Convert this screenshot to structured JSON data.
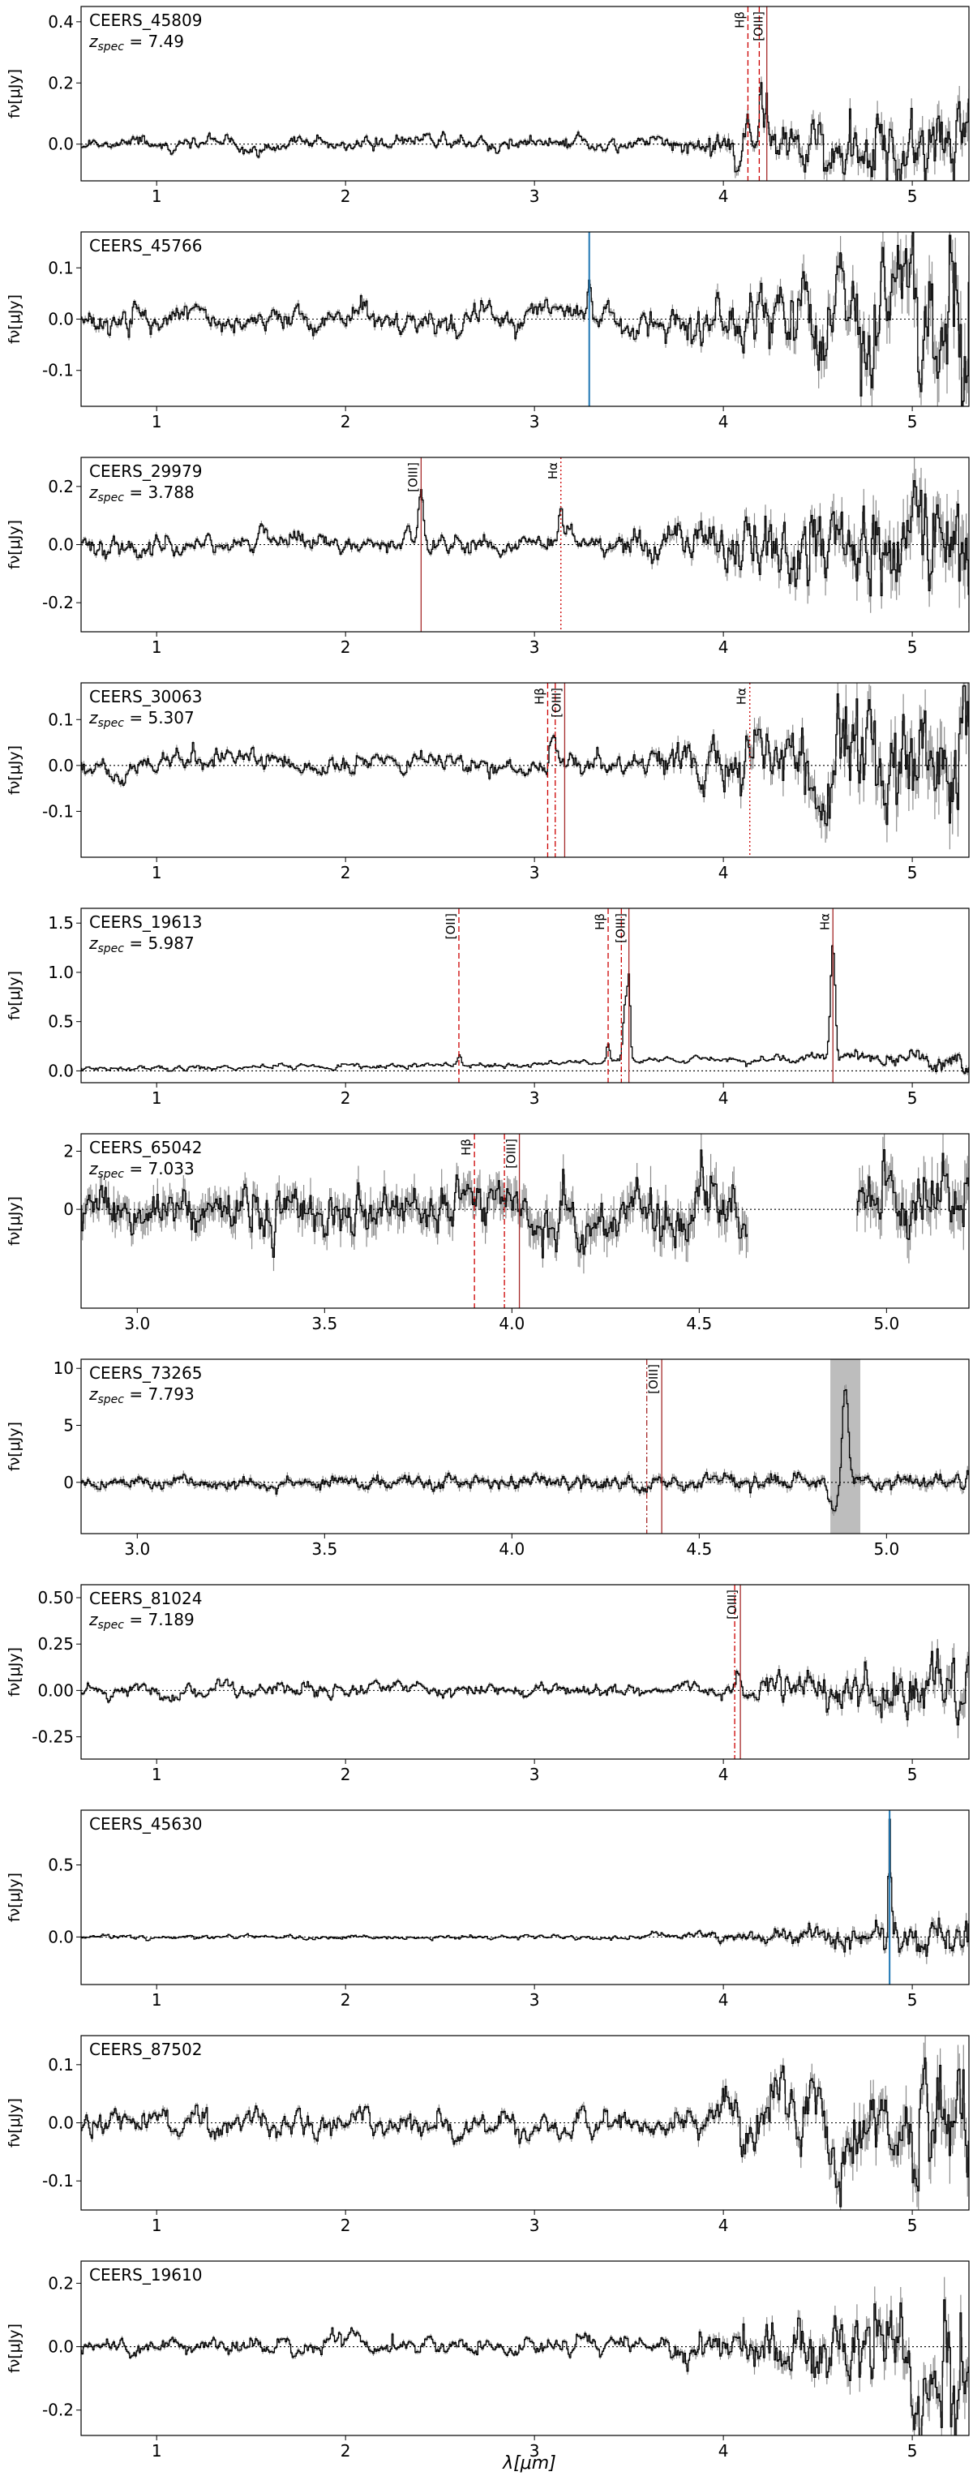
{
  "figure": {
    "xlabel": "λ[μm]"
  },
  "chart_data": [
    {
      "type": "line",
      "id": "CEERS_45809",
      "name": "CEERS_45809",
      "zspec": "7.49",
      "ylabel": "fν[μJy]",
      "xlim": [
        0.6,
        5.3
      ],
      "ylim": [
        -0.12,
        0.45
      ],
      "xticks": [
        1,
        2,
        3,
        4,
        5
      ],
      "xtick_labels": [
        "1",
        "2",
        "3",
        "4",
        "5"
      ],
      "yticks": [
        0.0,
        0.2,
        0.4
      ],
      "ytick_labels": [
        "0.0",
        "0.2",
        "0.4"
      ],
      "noise_start": 0.011,
      "noise_end": 0.1,
      "noise_knee": 3.6,
      "error_scale": 0.5,
      "wiggle": 0.008,
      "seed": 11,
      "features": [
        {
          "x": 4.13,
          "amp": 0.07,
          "w": 0.006
        },
        {
          "x": 4.2,
          "amp": 0.24,
          "w": 0.008
        },
        {
          "x": 4.23,
          "amp": 0.16,
          "w": 0.006
        }
      ],
      "lines": [
        {
          "x": 4.13,
          "label": "Hβ",
          "style": "dashed",
          "color": "#cc0000"
        },
        {
          "x": 4.19,
          "label": "",
          "style": "dashed",
          "color": "#cc0000"
        },
        {
          "x": 4.23,
          "label": "[OIII]",
          "style": "solid",
          "color": "#a52a2a"
        }
      ],
      "markers": [],
      "band": null,
      "gaps": []
    },
    {
      "type": "line",
      "id": "CEERS_45766",
      "name": "CEERS_45766",
      "zspec": "",
      "ylabel": "fν[μJy]",
      "xlim": [
        0.6,
        5.3
      ],
      "ylim": [
        -0.17,
        0.17
      ],
      "xticks": [
        1,
        2,
        3,
        4,
        5
      ],
      "xtick_labels": [
        "1",
        "2",
        "3",
        "4",
        "5"
      ],
      "yticks": [
        -0.1,
        0.0,
        0.1
      ],
      "ytick_labels": [
        "-0.1",
        "0.0",
        "0.1"
      ],
      "noise_start": 0.012,
      "noise_end": 0.1,
      "noise_knee": 3.6,
      "error_scale": 0.5,
      "wiggle": 0.012,
      "seed": 22,
      "features": [
        {
          "x": 3.29,
          "amp": 0.06,
          "w": 0.01
        }
      ],
      "lines": [],
      "markers": [
        {
          "x": 3.29,
          "color": "#1f77b4"
        }
      ],
      "band": null,
      "gaps": []
    },
    {
      "type": "line",
      "id": "CEERS_29979",
      "name": "CEERS_29979",
      "zspec": "3.788",
      "ylabel": "fν[μJy]",
      "xlim": [
        0.6,
        5.3
      ],
      "ylim": [
        -0.3,
        0.3
      ],
      "xticks": [
        1,
        2,
        3,
        4,
        5
      ],
      "xtick_labels": [
        "1",
        "2",
        "3",
        "4",
        "5"
      ],
      "yticks": [
        -0.2,
        0.0,
        0.2
      ],
      "ytick_labels": [
        "-0.2",
        "0.0",
        "0.2"
      ],
      "noise_start": 0.015,
      "noise_end": 0.15,
      "noise_knee": 3.3,
      "error_scale": 0.55,
      "wiggle": 0.02,
      "seed": 33,
      "features": [
        {
          "x": 2.4,
          "amp": 0.2,
          "w": 0.012
        },
        {
          "x": 3.14,
          "amp": 0.11,
          "w": 0.012
        }
      ],
      "lines": [
        {
          "x": 2.4,
          "label": "[OIII]",
          "style": "solid",
          "color": "#a52a2a"
        },
        {
          "x": 3.14,
          "label": "Hα",
          "style": "dotted",
          "color": "#cc0000"
        }
      ],
      "markers": [],
      "band": null,
      "gaps": []
    },
    {
      "type": "line",
      "id": "CEERS_30063",
      "name": "CEERS_30063",
      "zspec": "5.307",
      "ylabel": "fν[μJy]",
      "xlim": [
        0.6,
        5.3
      ],
      "ylim": [
        -0.2,
        0.18
      ],
      "xticks": [
        1,
        2,
        3,
        4,
        5
      ],
      "xtick_labels": [
        "1",
        "2",
        "3",
        "4",
        "5"
      ],
      "yticks": [
        -0.1,
        0.0,
        0.1
      ],
      "ytick_labels": [
        "-0.1",
        "0.0",
        "0.1"
      ],
      "noise_start": 0.01,
      "noise_end": 0.1,
      "noise_knee": 3.4,
      "error_scale": 0.55,
      "wiggle": 0.012,
      "seed": 44,
      "features": [
        {
          "x": 3.1,
          "amp": 0.06,
          "w": 0.015
        },
        {
          "x": 4.14,
          "amp": 0.04,
          "w": 0.02
        }
      ],
      "lines": [
        {
          "x": 3.07,
          "label": "Hβ",
          "style": "dashed",
          "color": "#cc0000"
        },
        {
          "x": 3.11,
          "label": "",
          "style": "dashdot",
          "color": "#cc0000"
        },
        {
          "x": 3.16,
          "label": "[OIII]",
          "style": "solid",
          "color": "#a52a2a"
        },
        {
          "x": 4.14,
          "label": "Hα",
          "style": "dotted",
          "color": "#cc0000"
        }
      ],
      "markers": [],
      "band": null,
      "gaps": []
    },
    {
      "type": "line",
      "id": "CEERS_19613",
      "name": "CEERS_19613",
      "zspec": "5.987",
      "ylabel": "fν[μJy]",
      "xlim": [
        0.6,
        5.3
      ],
      "ylim": [
        -0.12,
        1.65
      ],
      "xticks": [
        1,
        2,
        3,
        4,
        5
      ],
      "xtick_labels": [
        "1",
        "2",
        "3",
        "4",
        "5"
      ],
      "yticks": [
        0.0,
        0.5,
        1.0,
        1.5
      ],
      "ytick_labels": [
        "0.0",
        "0.5",
        "1.0",
        "1.5"
      ],
      "noise_start": 0.015,
      "noise_end": 0.07,
      "noise_knee": 4.0,
      "error_scale": 0.4,
      "wiggle": 0.01,
      "continuum": [
        [
          0.6,
          0.02
        ],
        [
          2.5,
          0.05
        ],
        [
          3.6,
          0.1
        ],
        [
          4.6,
          0.15
        ],
        [
          5.3,
          0.05
        ]
      ],
      "seed": 55,
      "features": [
        {
          "x": 2.6,
          "amp": 0.12,
          "w": 0.012
        },
        {
          "x": 3.39,
          "amp": 0.2,
          "w": 0.008
        },
        {
          "x": 3.48,
          "amp": 0.55,
          "w": 0.01
        },
        {
          "x": 3.5,
          "amp": 0.8,
          "w": 0.008
        },
        {
          "x": 4.58,
          "amp": 1.1,
          "w": 0.012
        }
      ],
      "lines": [
        {
          "x": 2.6,
          "label": "[OII]",
          "style": "dashed",
          "color": "#cc0000"
        },
        {
          "x": 3.39,
          "label": "Hβ",
          "style": "dashed",
          "color": "#cc0000"
        },
        {
          "x": 3.46,
          "label": "",
          "style": "dashdot",
          "color": "#cc0000"
        },
        {
          "x": 3.5,
          "label": "[OIII]",
          "style": "solid",
          "color": "#a52a2a"
        },
        {
          "x": 4.58,
          "label": "Hα",
          "style": "solid",
          "color": "#a52a2a"
        }
      ],
      "markers": [],
      "band": null,
      "gaps": []
    },
    {
      "type": "line",
      "id": "CEERS_65042",
      "name": "CEERS_65042",
      "zspec": "7.033",
      "ylabel": "fν[μJy]",
      "xlim": [
        2.85,
        5.22
      ],
      "ylim": [
        -3.4,
        2.6
      ],
      "xticks": [
        3.0,
        3.5,
        4.0,
        4.5,
        5.0
      ],
      "xtick_labels": [
        "3.0",
        "3.5",
        "4.0",
        "4.5",
        "5.0"
      ],
      "yticks": [
        0,
        2
      ],
      "ytick_labels": [
        "0",
        "2"
      ],
      "noise_start": 0.45,
      "noise_end": 0.7,
      "noise_knee": 2.85,
      "error_scale": 0.9,
      "wiggle": 0.05,
      "seed": 66,
      "features": [],
      "lines": [
        {
          "x": 3.9,
          "label": "Hβ",
          "style": "dashed",
          "color": "#cc0000"
        },
        {
          "x": 3.98,
          "label": "",
          "style": "dashdot",
          "color": "#cc0000"
        },
        {
          "x": 4.02,
          "label": "[OIII]",
          "style": "solid",
          "color": "#a52a2a"
        }
      ],
      "markers": [],
      "band": null,
      "gaps": [
        [
          4.63,
          4.92
        ]
      ]
    },
    {
      "type": "line",
      "id": "CEERS_73265",
      "name": "CEERS_73265",
      "zspec": "7.793",
      "ylabel": "fν[μJy]",
      "xlim": [
        2.85,
        5.22
      ],
      "ylim": [
        -4.5,
        10.8
      ],
      "xticks": [
        3.0,
        3.5,
        4.0,
        4.5,
        5.0
      ],
      "xtick_labels": [
        "3.0",
        "3.5",
        "4.0",
        "4.5",
        "5.0"
      ],
      "yticks": [
        0,
        5,
        10
      ],
      "ytick_labels": [
        "0",
        "5",
        "10"
      ],
      "noise_start": 0.3,
      "noise_end": 0.45,
      "noise_knee": 2.85,
      "error_scale": 0.8,
      "wiggle": 0.05,
      "seed": 77,
      "features": [
        {
          "x": 4.89,
          "amp": 8.0,
          "w": 0.008
        },
        {
          "x": 4.86,
          "amp": -2.5,
          "w": 0.01
        }
      ],
      "lines": [
        {
          "x": 4.36,
          "label": "",
          "style": "dashdot",
          "color": "#a52a2a"
        },
        {
          "x": 4.4,
          "label": "[OIII]",
          "style": "solid",
          "color": "#a52a2a"
        }
      ],
      "markers": [],
      "band": [
        4.85,
        4.93
      ],
      "gaps": []
    },
    {
      "type": "line",
      "id": "CEERS_81024",
      "name": "CEERS_81024",
      "zspec": "7.189",
      "ylabel": "fν[μJy]",
      "xlim": [
        0.6,
        5.3
      ],
      "ylim": [
        -0.37,
        0.57
      ],
      "xticks": [
        1,
        2,
        3,
        4,
        5
      ],
      "xtick_labels": [
        "1",
        "2",
        "3",
        "4",
        "5"
      ],
      "yticks": [
        -0.25,
        0.0,
        0.25,
        0.5
      ],
      "ytick_labels": [
        "-0.25",
        "0.00",
        "0.25",
        "0.50"
      ],
      "noise_start": 0.018,
      "noise_end": 0.13,
      "noise_knee": 3.9,
      "error_scale": 0.5,
      "wiggle": 0.015,
      "seed": 88,
      "features": [
        {
          "x": 4.07,
          "amp": 0.12,
          "w": 0.012
        }
      ],
      "lines": [
        {
          "x": 4.06,
          "label": "",
          "style": "dashdot",
          "color": "#cc0000"
        },
        {
          "x": 4.09,
          "label": "[OIII]",
          "style": "solid",
          "color": "#a52a2a"
        }
      ],
      "markers": [],
      "band": null,
      "gaps": []
    },
    {
      "type": "line",
      "id": "CEERS_45630",
      "name": "CEERS_45630",
      "zspec": "",
      "ylabel": "fν[μJy]",
      "xlim": [
        0.6,
        5.3
      ],
      "ylim": [
        -0.33,
        0.88
      ],
      "xticks": [
        1,
        2,
        3,
        4,
        5
      ],
      "xtick_labels": [
        "1",
        "2",
        "3",
        "4",
        "5"
      ],
      "yticks": [
        0.0,
        0.5
      ],
      "ytick_labels": [
        "0.0",
        "0.5"
      ],
      "noise_start": 0.008,
      "noise_end": 0.09,
      "noise_knee": 3.5,
      "error_scale": 0.5,
      "wiggle": 0.006,
      "seed": 99,
      "features": [
        {
          "x": 4.88,
          "amp": 0.75,
          "w": 0.006
        }
      ],
      "lines": [],
      "markers": [
        {
          "x": 4.88,
          "color": "#1f77b4"
        }
      ],
      "band": null,
      "gaps": []
    },
    {
      "type": "line",
      "id": "CEERS_87502",
      "name": "CEERS_87502",
      "zspec": "",
      "ylabel": "fν[μJy]",
      "xlim": [
        0.6,
        5.3
      ],
      "ylim": [
        -0.15,
        0.15
      ],
      "xticks": [
        1,
        2,
        3,
        4,
        5
      ],
      "xtick_labels": [
        "1",
        "2",
        "3",
        "4",
        "5"
      ],
      "yticks": [
        -0.1,
        0.0,
        0.1
      ],
      "ytick_labels": [
        "-0.1",
        "0.0",
        "0.1"
      ],
      "noise_start": 0.01,
      "noise_end": 0.07,
      "noise_knee": 3.6,
      "error_scale": 0.55,
      "wiggle": 0.014,
      "seed": 111,
      "features": [],
      "lines": [],
      "markers": [],
      "band": null,
      "gaps": []
    },
    {
      "type": "line",
      "id": "CEERS_19610",
      "name": "CEERS_19610",
      "zspec": "",
      "ylabel": "fν[μJy]",
      "xlim": [
        0.6,
        5.3
      ],
      "ylim": [
        -0.28,
        0.27
      ],
      "xticks": [
        1,
        2,
        3,
        4,
        5
      ],
      "xtick_labels": [
        "1",
        "2",
        "3",
        "4",
        "5"
      ],
      "yticks": [
        -0.2,
        0.0,
        0.2
      ],
      "ytick_labels": [
        "-0.2",
        "0.0",
        "0.2"
      ],
      "noise_start": 0.012,
      "noise_end": 0.12,
      "noise_knee": 3.6,
      "error_scale": 0.5,
      "wiggle": 0.02,
      "seed": 122,
      "features": [],
      "lines": [],
      "markers": [],
      "band": null,
      "gaps": []
    }
  ]
}
